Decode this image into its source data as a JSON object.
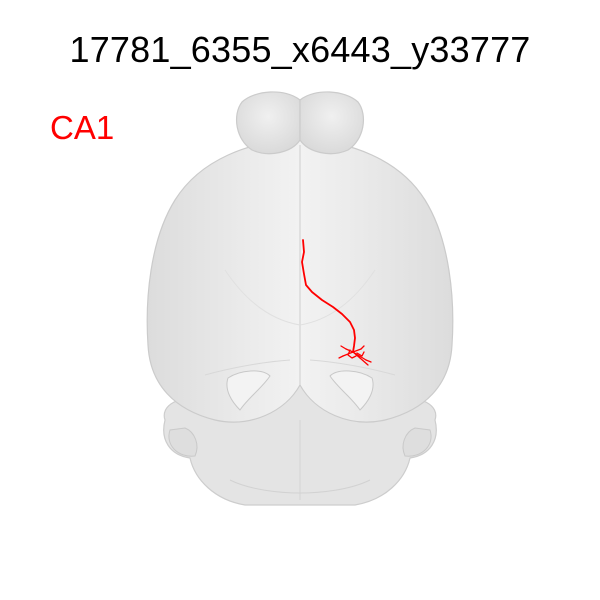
{
  "neuron_id": "17781_6355_x6443_y33777",
  "region_label": "CA1",
  "colors": {
    "trace": "#ff0000",
    "brain_fill": "#e6e6e6",
    "brain_edge": "#cfcfcf",
    "background": "#ffffff"
  }
}
